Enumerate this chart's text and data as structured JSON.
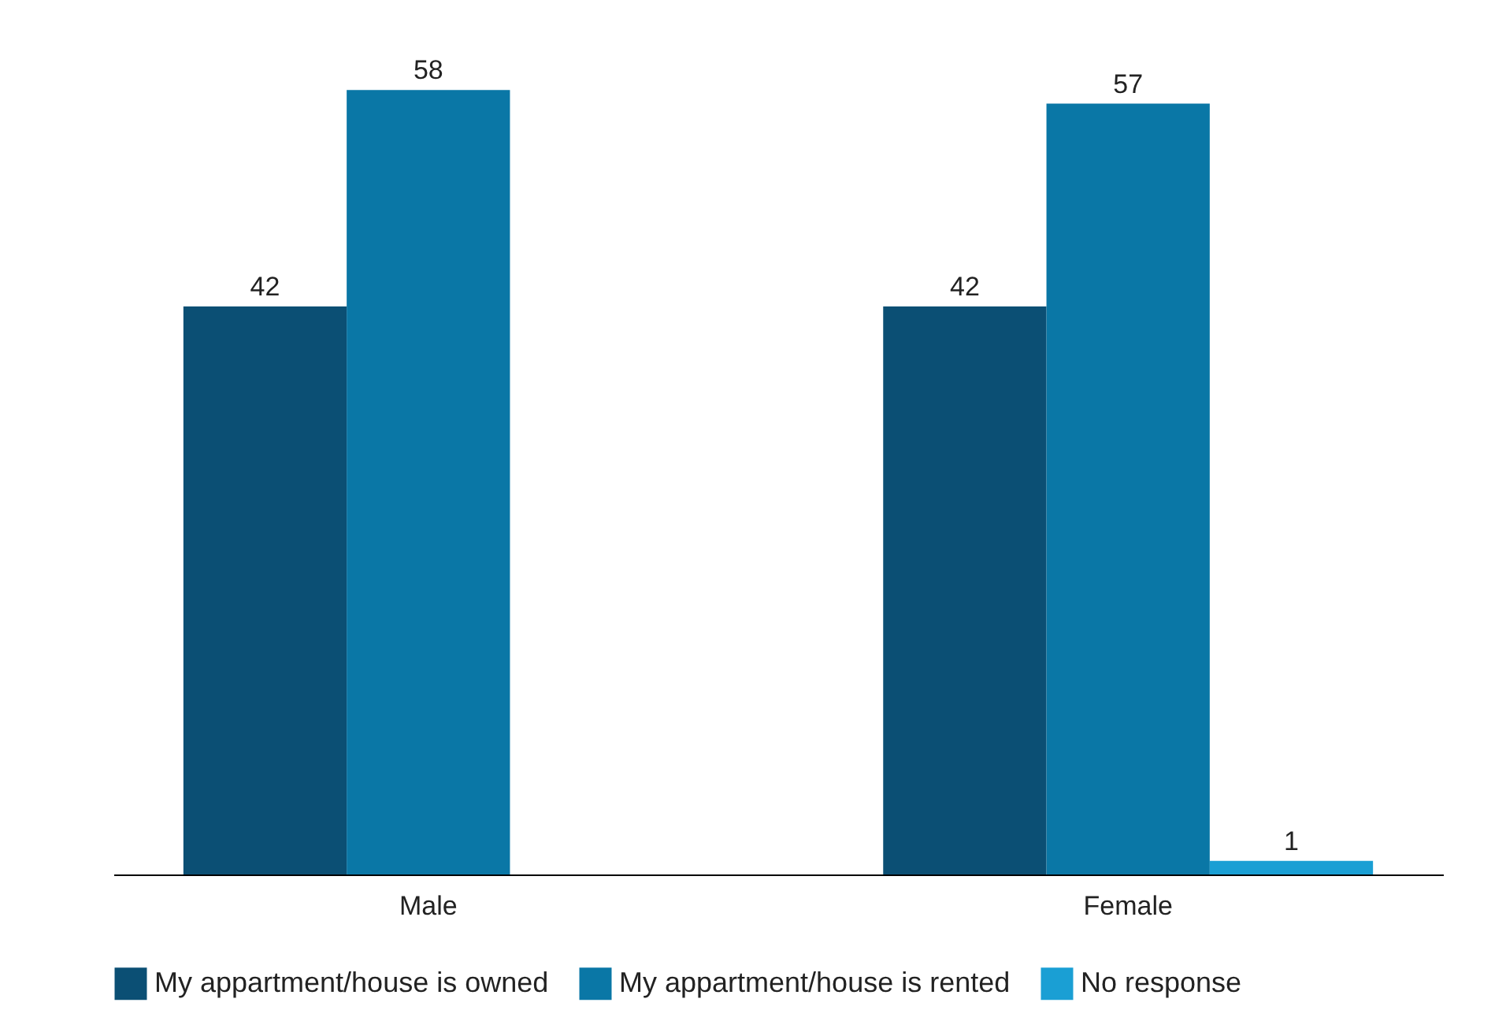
{
  "chart_data": {
    "type": "bar",
    "categories": [
      "Male",
      "Female"
    ],
    "series": [
      {
        "name": "My appartment/house is owned",
        "color": "#0b4f74",
        "values": [
          42,
          42
        ]
      },
      {
        "name": "My appartment/house is rented",
        "color": "#0a77a6",
        "values": [
          58,
          57
        ]
      },
      {
        "name": "No response",
        "color": "#1a9fd4",
        "values": [
          null,
          1
        ]
      }
    ],
    "data_labels": true,
    "legend": "bottom",
    "grid": false
  }
}
